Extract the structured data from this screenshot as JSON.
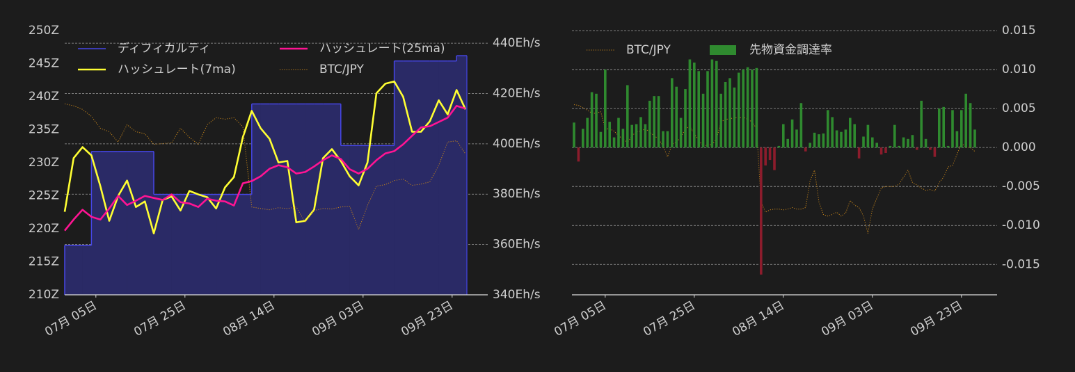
{
  "chart_data": [
    {
      "type": "line",
      "x": [
        "06-28",
        "06-30",
        "07-02",
        "07-04",
        "07-06",
        "07-08",
        "07-10",
        "07-12",
        "07-14",
        "07-16",
        "07-18",
        "07-20",
        "07-22",
        "07-24",
        "07-26",
        "07-28",
        "07-30",
        "08-01",
        "08-03",
        "08-05",
        "08-07",
        "08-09",
        "08-11",
        "08-13",
        "08-15",
        "08-17",
        "08-19",
        "08-21",
        "08-23",
        "08-25",
        "08-27",
        "08-29",
        "08-31",
        "09-02",
        "09-04",
        "09-06",
        "09-08",
        "09-10",
        "09-12",
        "09-14",
        "09-16",
        "09-18",
        "09-20",
        "09-22",
        "09-24",
        "09-26"
      ],
      "xlim": [
        "06-28",
        "10-01"
      ],
      "xticks": [
        {
          "value": "07-05",
          "label": "07月 05日"
        },
        {
          "value": "07-25",
          "label": "07月 25日"
        },
        {
          "value": "08-14",
          "label": "08月 14日"
        },
        {
          "value": "09-03",
          "label": "09月 03日"
        },
        {
          "value": "09-23",
          "label": "09月 23日"
        }
      ],
      "ylim": [
        210,
        250
      ],
      "yticks": [
        {
          "value": 210,
          "label": "210Z"
        },
        {
          "value": 215,
          "label": "215Z"
        },
        {
          "value": 220,
          "label": "220Z"
        },
        {
          "value": 225,
          "label": "225Z"
        },
        {
          "value": 230,
          "label": "230Z"
        },
        {
          "value": 235,
          "label": "235Z"
        },
        {
          "value": 240,
          "label": "240Z"
        },
        {
          "value": 245,
          "label": "245Z"
        },
        {
          "value": 250,
          "label": "250Z"
        }
      ],
      "y2lim": [
        340,
        445
      ],
      "y2ticks": [
        {
          "value": 340,
          "label": "340Eh/s"
        },
        {
          "value": 360,
          "label": "360Eh/s"
        },
        {
          "value": 380,
          "label": "380Eh/s"
        },
        {
          "value": 400,
          "label": "400Eh/s"
        },
        {
          "value": 420,
          "label": "420Eh/s"
        },
        {
          "value": 440,
          "label": "440Eh/s"
        }
      ],
      "grid": "y2",
      "legend": "upper left",
      "series": [
        {
          "name": "ディフィカルティ",
          "type": "step-area",
          "color": "#4646e6",
          "fill": "#2a2a66",
          "values": [
            217.5,
            217.5,
            217.5,
            231.7,
            231.7,
            231.7,
            231.7,
            231.7,
            231.7,
            231.7,
            225.2,
            225.2,
            225.2,
            225.2,
            225.2,
            225.2,
            225.2,
            225.2,
            225.2,
            225.2,
            225.2,
            238.9,
            238.9,
            238.9,
            238.9,
            238.9,
            238.9,
            238.9,
            238.9,
            238.9,
            238.9,
            232.6,
            232.6,
            232.6,
            232.6,
            232.6,
            232.6,
            245.4,
            245.4,
            245.4,
            245.4,
            245.4,
            245.4,
            245.4,
            246.2,
            246.2
          ]
        },
        {
          "name": "ハッシュレート(7ma)",
          "type": "line",
          "color": "#ffff33",
          "axis": "y2",
          "values": [
            373.0,
            394.3,
            398.7,
            395.4,
            383.2,
            369.4,
            379.3,
            385.4,
            374.9,
            377.1,
            364.4,
            377.7,
            379.1,
            373.5,
            381.3,
            379.9,
            378.8,
            374.3,
            382.7,
            386.8,
            402.6,
            413.1,
            406.2,
            402.0,
            392.6,
            393.2,
            368.8,
            369.4,
            373.8,
            394.3,
            397.9,
            393.2,
            387.1,
            383.5,
            392.6,
            420.1,
            423.9,
            424.8,
            418.7,
            404.8,
            404.8,
            409.0,
            417.3,
            411.7,
            421.4,
            413.7
          ]
        },
        {
          "name": "ハッシュレート(25ma)",
          "type": "line",
          "color": "#ff1493",
          "axis": "y2",
          "values": [
            365.5,
            369.9,
            373.8,
            371.0,
            369.9,
            374.3,
            379.3,
            375.7,
            377.4,
            379.3,
            378.5,
            377.7,
            379.9,
            376.8,
            376.3,
            374.9,
            378.2,
            377.4,
            377.1,
            375.5,
            384.3,
            385.2,
            387.1,
            390.1,
            391.5,
            390.7,
            388.2,
            388.8,
            391.0,
            393.5,
            395.4,
            394.0,
            389.9,
            388.2,
            390.1,
            393.5,
            396.2,
            397.1,
            399.8,
            403.2,
            406.5,
            407.0,
            408.7,
            410.4,
            415.1,
            414.0
          ]
        },
        {
          "name": "BTC/JPY",
          "type": "line",
          "color": "#c8861a",
          "axis": "y2",
          "dash": "dotted",
          "values": [
            415.9,
            415.1,
            413.7,
            410.9,
            406.2,
            404.8,
            400.7,
            407.6,
            404.8,
            404.0,
            399.8,
            400.1,
            400.4,
            406.2,
            402.6,
            399.8,
            407.6,
            410.4,
            409.8,
            410.4,
            406.8,
            374.9,
            374.3,
            373.8,
            374.6,
            374.3,
            374.9,
            368.8,
            373.5,
            374.3,
            374.1,
            374.9,
            375.2,
            366.0,
            375.5,
            383.2,
            383.8,
            385.4,
            386.0,
            383.5,
            384.0,
            384.9,
            391.5,
            400.7,
            401.2,
            396.0
          ]
        }
      ]
    },
    {
      "type": "bar",
      "x": [
        "06-28",
        "06-29",
        "06-30",
        "07-01",
        "07-02",
        "07-03",
        "07-04",
        "07-05",
        "07-06",
        "07-07",
        "07-08",
        "07-09",
        "07-10",
        "07-11",
        "07-12",
        "07-13",
        "07-14",
        "07-15",
        "07-16",
        "07-17",
        "07-18",
        "07-19",
        "07-20",
        "07-21",
        "07-22",
        "07-23",
        "07-24",
        "07-25",
        "07-26",
        "07-27",
        "07-28",
        "07-29",
        "07-30",
        "07-31",
        "08-01",
        "08-02",
        "08-03",
        "08-04",
        "08-05",
        "08-06",
        "08-07",
        "08-08",
        "08-09",
        "08-10",
        "08-11",
        "08-12",
        "08-13",
        "08-14",
        "08-15",
        "08-16",
        "08-17",
        "08-18",
        "08-19",
        "08-20",
        "08-21",
        "08-22",
        "08-23",
        "08-24",
        "08-25",
        "08-26",
        "08-27",
        "08-28",
        "08-29",
        "08-30",
        "08-31",
        "09-01",
        "09-02",
        "09-03",
        "09-04",
        "09-05",
        "09-06",
        "09-07",
        "09-08",
        "09-09",
        "09-10",
        "09-11",
        "09-12",
        "09-13",
        "09-14",
        "09-15",
        "09-16",
        "09-17",
        "09-18",
        "09-19",
        "09-20",
        "09-21",
        "09-22",
        "09-23",
        "09-24",
        "09-25",
        "09-26"
      ],
      "xlim": [
        "06-28",
        "10-01"
      ],
      "xticks": [
        {
          "value": "07-05",
          "label": "07月 05日"
        },
        {
          "value": "07-25",
          "label": "07月 25日"
        },
        {
          "value": "08-14",
          "label": "08月 14日"
        },
        {
          "value": "09-03",
          "label": "09月 03日"
        },
        {
          "value": "09-23",
          "label": "09月 23日"
        }
      ],
      "ylim": [
        -0.0189,
        0.015
      ],
      "yticks": [
        {
          "value": -0.015,
          "label": "-0.015"
        },
        {
          "value": -0.01,
          "label": "-0.010"
        },
        {
          "value": -0.005,
          "label": "-0.005"
        },
        {
          "value": 0,
          "label": "0.000"
        },
        {
          "value": 0.005,
          "label": "0.005"
        },
        {
          "value": 0.01,
          "label": "0.010"
        },
        {
          "value": 0.015,
          "label": "0.015"
        }
      ],
      "grid": "y",
      "legend": "upper left",
      "series": [
        {
          "name": "BTC/JPY",
          "type": "line",
          "color": "#c8861a",
          "dash": "dotted",
          "values": [
            0.0055,
            0.0054,
            0.0051,
            0.0048,
            0.0044,
            0.0044,
            0.0046,
            0.0024,
            0.0024,
            0.0021,
            0.0015,
            0.0011,
            0.0006,
            0.0015,
            0.002,
            0.0021,
            0.0024,
            0.002,
            0.0015,
            0.0011,
            0.0002,
            -0.0012,
            0.0004,
            0.0007,
            0.0013,
            0.0024,
            0.0027,
            0.0018,
            0.0009,
            0.0002,
            0.0003,
            0.0004,
            0.0011,
            0.0033,
            0.0036,
            0.0037,
            0.0038,
            0.0038,
            0.0039,
            0.0036,
            0.0033,
            0.0024,
            -0.007,
            -0.0083,
            -0.008,
            -0.0079,
            -0.0079,
            -0.008,
            -0.0079,
            -0.0077,
            -0.0079,
            -0.0079,
            -0.0077,
            -0.0043,
            -0.0029,
            -0.007,
            -0.0086,
            -0.0088,
            -0.0086,
            -0.0083,
            -0.0088,
            -0.0084,
            -0.0068,
            -0.0074,
            -0.0077,
            -0.0088,
            -0.011,
            -0.0079,
            -0.0065,
            -0.0052,
            -0.005,
            -0.005,
            -0.005,
            -0.0047,
            -0.0038,
            -0.0029,
            -0.0045,
            -0.0048,
            -0.0052,
            -0.0055,
            -0.0054,
            -0.0056,
            -0.0045,
            -0.0038,
            -0.0025,
            -0.0023,
            -0.0009,
            0.0006,
            0.0,
            0.0,
            -0.0005
          ]
        },
        {
          "name": "先物資金調達率",
          "type": "bar",
          "color": "#2f8a2f",
          "negative_color": "#8c1c2c",
          "values": [
            0.0032,
            -0.0018,
            0.0024,
            0.0038,
            0.0071,
            0.0069,
            0.002,
            0.01,
            0.0033,
            0.0013,
            0.0038,
            0.0024,
            0.008,
            0.0029,
            0.003,
            0.0039,
            0.003,
            0.006,
            0.0066,
            0.0066,
            0.0021,
            0.0021,
            0.0089,
            0.0078,
            0.0038,
            0.0075,
            0.0113,
            0.0109,
            0.0098,
            0.0069,
            0.0098,
            0.0113,
            0.0111,
            0.0069,
            0.0084,
            0.0089,
            0.0077,
            0.0096,
            0.01,
            0.0103,
            0.01,
            0.0102,
            -0.0163,
            -0.0023,
            -0.0016,
            -0.0029,
            0.0002,
            0.003,
            0.0011,
            0.0036,
            0.0023,
            0.0057,
            -0.0005,
            0.0006,
            0.0019,
            0.0017,
            0.0018,
            0.0048,
            0.0039,
            0.0022,
            0.002,
            0.0023,
            0.0038,
            0.003,
            -0.0014,
            0.0014,
            0.0029,
            0.0013,
            0.0006,
            -0.0009,
            -0.0007,
            0.0002,
            0.0029,
            0.0002,
            0.0013,
            0.0011,
            0.0016,
            -0.0003,
            0.006,
            0.0011,
            -0.0003,
            -0.0012,
            0.005,
            0.0052,
            0.0002,
            0.0048,
            0.0021,
            0.0048,
            0.0069,
            0.0057,
            0.0023
          ]
        }
      ]
    }
  ]
}
